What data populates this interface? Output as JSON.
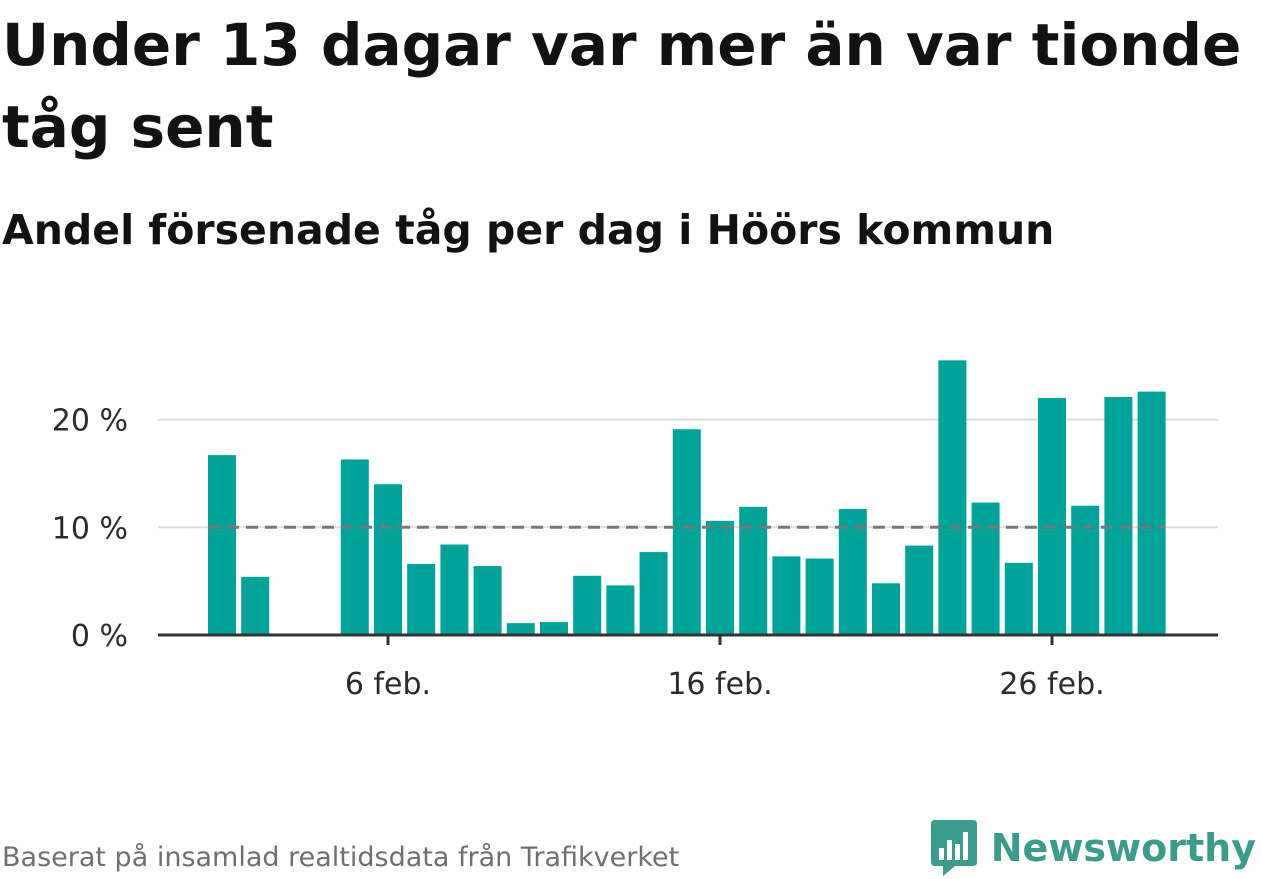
{
  "header": {
    "title": "Under 13 dagar var mer än var tionde tåg sent",
    "subtitle": "Andel försenade tåg per dag i Höörs kommun"
  },
  "footer": {
    "source": "Baserat på insamlad realtidsdata från Trafikverket",
    "brand": "Newsworthy",
    "brand_color": "#3a9c8d"
  },
  "colors": {
    "bar": "#00a399",
    "reference_line": "#777777",
    "grid": "#dddddd",
    "axis": "#333333"
  },
  "chart_data": {
    "type": "bar",
    "x_start_day": 1,
    "categories": [
      "1 feb.",
      "2 feb.",
      "3 feb.",
      "4 feb.",
      "5 feb.",
      "6 feb.",
      "7 feb.",
      "8 feb.",
      "9 feb.",
      "10 feb.",
      "11 feb.",
      "12 feb.",
      "13 feb.",
      "14 feb.",
      "15 feb.",
      "16 feb.",
      "17 feb.",
      "18 feb.",
      "19 feb.",
      "20 feb.",
      "21 feb.",
      "22 feb.",
      "23 feb.",
      "24 feb.",
      "25 feb.",
      "26 feb.",
      "27 feb.",
      "28 feb.",
      "29 feb."
    ],
    "values": [
      16.7,
      5.4,
      null,
      null,
      16.3,
      14.0,
      6.6,
      8.4,
      6.4,
      1.1,
      1.2,
      5.5,
      4.6,
      7.7,
      19.1,
      10.6,
      11.9,
      7.3,
      7.1,
      11.7,
      4.8,
      8.3,
      25.5,
      12.3,
      6.7,
      22.0,
      12.0,
      22.1,
      22.6
    ],
    "reference_line": 10,
    "y_ticks": [
      0,
      10,
      20
    ],
    "y_tick_labels": [
      "0 %",
      "10 %",
      "20 %"
    ],
    "x_tick_labels": [
      "6 feb.",
      "16 feb.",
      "26 feb."
    ],
    "x_tick_index": [
      5,
      15,
      25
    ],
    "ylim": [
      0,
      26
    ],
    "grid": true
  }
}
